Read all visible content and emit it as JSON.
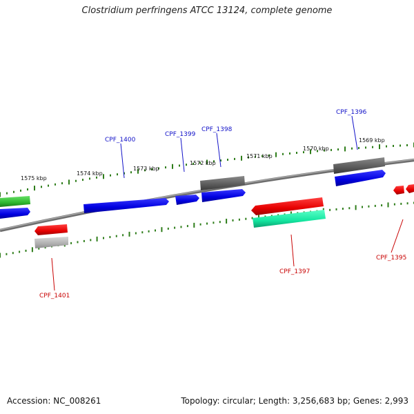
{
  "title": "Clostridium perfringens ATCC 13124, complete genome",
  "footer": {
    "accession": "Accession: NC_008261",
    "stats": "Topology: circular; Length: 3,256,683 bp; Genes: 2,993"
  },
  "scale_labels": [
    "1575 kbp",
    "1574 kbp",
    "1573 kbp",
    "1572 kbp",
    "1571 kbp",
    "1570 kbp",
    "1569 kbp"
  ],
  "gene_labels": [
    "CPF_1400",
    "CPF_1399",
    "CPF_1398",
    "CPF_1396",
    "CPF_1401",
    "CPF_1397",
    "CPF_1395"
  ],
  "colors": {
    "backbone": "#8a8a8a",
    "tick": "#2e7d1a",
    "forward_label": "#1010c8",
    "reverse_label": "#c80000",
    "blue": "#0a0ae6",
    "red": "#e60a0a",
    "gray": "#666666",
    "light_gray": "#b5b5b5",
    "green": "#2eb82e",
    "teal": "#14e6a0"
  }
}
